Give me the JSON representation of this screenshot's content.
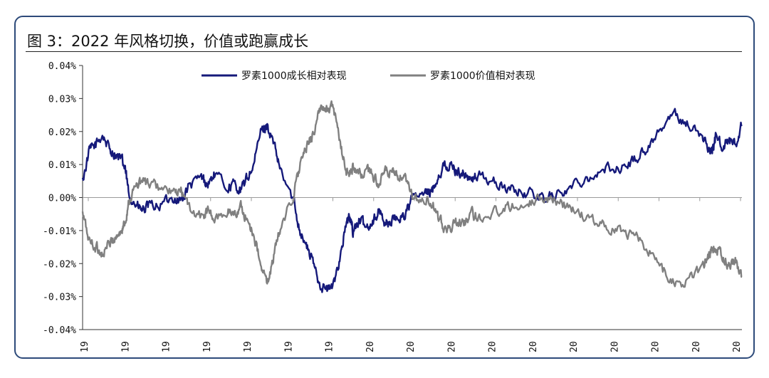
{
  "title": "图 3：2022 年风格切换，价值或跑赢成长",
  "chart_data": {
    "type": "line",
    "title": "图 3：2022 年风格切换，价值或跑赢成长",
    "xlabel": "",
    "ylabel": "",
    "ylim": [
      -0.04,
      0.04
    ],
    "y_ticks": [
      "0.04%",
      "0.03%",
      "0.02%",
      "0.01%",
      "0.00%",
      "-0.01%",
      "-0.02%",
      "-0.03%",
      "-0.04%"
    ],
    "y_tick_values": [
      0.04,
      0.03,
      0.02,
      0.01,
      0.0,
      -0.01,
      -0.02,
      -0.03,
      -0.04
    ],
    "x_ticks": [
      "19",
      "19",
      "19",
      "19",
      "19",
      "19",
      "19",
      "20",
      "20",
      "20",
      "20",
      "20",
      "20",
      "20",
      "20",
      "20",
      "20"
    ],
    "legend_position": "top-center",
    "grid": false,
    "series": [
      {
        "name": "罗素1000成长相对表现",
        "color": "#15197a",
        "x": [
          0,
          0.01,
          0.02,
          0.03,
          0.04,
          0.05,
          0.06,
          0.065,
          0.07,
          0.08,
          0.09,
          0.1,
          0.12,
          0.14,
          0.15,
          0.16,
          0.18,
          0.19,
          0.2,
          0.22,
          0.23,
          0.24,
          0.25,
          0.26,
          0.27,
          0.28,
          0.29,
          0.3,
          0.32,
          0.33,
          0.34,
          0.35,
          0.36,
          0.37,
          0.38,
          0.39,
          0.4,
          0.405,
          0.41,
          0.42,
          0.43,
          0.44,
          0.45,
          0.46,
          0.47,
          0.48,
          0.49,
          0.5,
          0.52,
          0.53,
          0.54,
          0.55,
          0.56,
          0.57,
          0.58,
          0.59,
          0.6,
          0.62,
          0.64,
          0.66,
          0.68,
          0.7,
          0.72,
          0.74,
          0.76,
          0.78,
          0.8,
          0.82,
          0.84,
          0.86,
          0.88,
          0.9,
          0.92,
          0.94,
          0.95,
          0.955,
          0.96,
          0.97,
          0.98,
          0.99,
          1.0
        ],
        "y": [
          0.005,
          0.014,
          0.016,
          0.019,
          0.015,
          0.013,
          0.011,
          0.008,
          0.001,
          -0.002,
          -0.004,
          -0.003,
          -0.002,
          0.0,
          -0.001,
          0.003,
          0.006,
          0.004,
          0.007,
          0.003,
          0.004,
          0.002,
          0.006,
          0.01,
          0.02,
          0.022,
          0.016,
          0.008,
          -0.001,
          -0.01,
          -0.015,
          -0.02,
          -0.026,
          -0.028,
          -0.027,
          -0.018,
          -0.008,
          -0.006,
          -0.01,
          -0.007,
          -0.009,
          -0.007,
          -0.004,
          -0.008,
          -0.007,
          -0.006,
          -0.005,
          0.0,
          0.001,
          0.002,
          0.007,
          0.01,
          0.009,
          0.008,
          0.007,
          0.005,
          0.007,
          0.005,
          0.003,
          0.002,
          0.001,
          0.0,
          0.001,
          0.003,
          0.006,
          0.007,
          0.009,
          0.009,
          0.012,
          0.016,
          0.022,
          0.025,
          0.022,
          0.018,
          0.015,
          0.014,
          0.018,
          0.016,
          0.017,
          0.016,
          0.022
        ]
      },
      {
        "name": "罗素1000价值相对表现",
        "color": "#808080",
        "x": [
          0,
          0.01,
          0.02,
          0.03,
          0.04,
          0.05,
          0.06,
          0.065,
          0.07,
          0.08,
          0.09,
          0.1,
          0.12,
          0.14,
          0.15,
          0.16,
          0.18,
          0.19,
          0.2,
          0.22,
          0.23,
          0.24,
          0.25,
          0.26,
          0.27,
          0.28,
          0.29,
          0.3,
          0.32,
          0.33,
          0.34,
          0.35,
          0.36,
          0.37,
          0.38,
          0.39,
          0.4,
          0.405,
          0.41,
          0.42,
          0.43,
          0.44,
          0.45,
          0.46,
          0.47,
          0.48,
          0.49,
          0.5,
          0.52,
          0.53,
          0.54,
          0.55,
          0.56,
          0.57,
          0.58,
          0.59,
          0.6,
          0.62,
          0.64,
          0.66,
          0.68,
          0.7,
          0.72,
          0.74,
          0.76,
          0.78,
          0.8,
          0.82,
          0.84,
          0.86,
          0.88,
          0.9,
          0.92,
          0.94,
          0.95,
          0.955,
          0.96,
          0.97,
          0.98,
          0.99,
          1.0
        ],
        "y": [
          -0.005,
          -0.013,
          -0.015,
          -0.017,
          -0.014,
          -0.012,
          -0.01,
          -0.007,
          -0.001,
          0.003,
          0.005,
          0.004,
          0.003,
          0.001,
          0.002,
          -0.003,
          -0.006,
          -0.004,
          -0.007,
          -0.004,
          -0.005,
          -0.003,
          -0.007,
          -0.011,
          -0.021,
          -0.026,
          -0.018,
          -0.009,
          0.001,
          0.01,
          0.015,
          0.02,
          0.026,
          0.028,
          0.027,
          0.017,
          0.008,
          0.007,
          0.009,
          0.007,
          0.008,
          0.007,
          0.004,
          0.008,
          0.007,
          0.006,
          0.005,
          0.0,
          -0.001,
          -0.002,
          -0.007,
          -0.009,
          -0.009,
          -0.008,
          -0.007,
          -0.005,
          -0.006,
          -0.005,
          -0.003,
          -0.002,
          -0.001,
          0.0,
          -0.001,
          -0.003,
          -0.006,
          -0.007,
          -0.009,
          -0.01,
          -0.012,
          -0.016,
          -0.022,
          -0.026,
          -0.025,
          -0.021,
          -0.017,
          -0.016,
          -0.015,
          -0.018,
          -0.02,
          -0.019,
          -0.024
        ]
      }
    ]
  }
}
